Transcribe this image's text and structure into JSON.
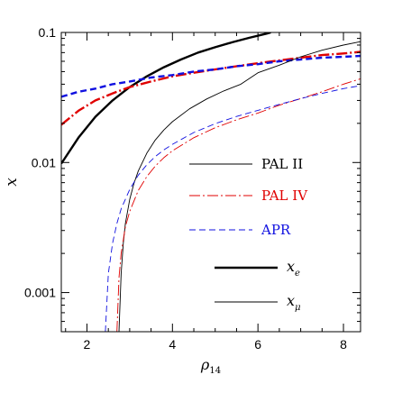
{
  "chart_data": {
    "type": "line",
    "xlabel": "ρ",
    "xlabel_sub": "14",
    "ylabel": "x",
    "y_scale": "log",
    "xlim": [
      1.4,
      8.4
    ],
    "ylim": [
      0.0005,
      0.1
    ],
    "x_ticks": [
      2,
      4,
      6,
      8
    ],
    "x_tick_labels": [
      "2",
      "4",
      "6",
      "8"
    ],
    "y_ticks": [
      0.001,
      0.01,
      0.1
    ],
    "y_tick_labels": [
      "0.001",
      "0.01",
      "0.1"
    ],
    "grid": false,
    "legend": {
      "placement": "right",
      "eos_entries": [
        {
          "label": "PAL II",
          "color": "#000000",
          "style": "solid"
        },
        {
          "label": "PAL IV",
          "color": "#e00000",
          "style": "dash-dot"
        },
        {
          "label": "APR",
          "color": "#1010e0",
          "style": "dashed"
        }
      ],
      "particle_entries": [
        {
          "label": "x",
          "sub": "e",
          "width": "thick"
        },
        {
          "label": "x",
          "sub": "μ",
          "width": "thin"
        }
      ]
    },
    "series": [
      {
        "eos": "PAL II",
        "particle": "e",
        "color": "#000000",
        "style": "solid",
        "width": "thick",
        "x": [
          1.4,
          1.8,
          2.2,
          2.6,
          3.0,
          3.4,
          3.8,
          4.2,
          4.6,
          5.0,
          5.4,
          5.8,
          6.2,
          6.3
        ],
        "y": [
          0.0098,
          0.0155,
          0.0225,
          0.03,
          0.038,
          0.046,
          0.054,
          0.062,
          0.07,
          0.077,
          0.084,
          0.091,
          0.098,
          0.1
        ]
      },
      {
        "eos": "PAL IV",
        "particle": "e",
        "color": "#e00000",
        "style": "dash-dot",
        "width": "thick",
        "x": [
          1.4,
          1.8,
          2.2,
          2.6,
          3.0,
          3.5,
          4.0,
          4.5,
          5.0,
          5.5,
          6.0,
          6.5,
          7.0,
          7.5,
          8.0,
          8.4
        ],
        "y": [
          0.0195,
          0.025,
          0.03,
          0.034,
          0.038,
          0.042,
          0.046,
          0.049,
          0.052,
          0.055,
          0.058,
          0.061,
          0.064,
          0.067,
          0.069,
          0.071
        ]
      },
      {
        "eos": "APR",
        "particle": "e",
        "color": "#1010e0",
        "style": "dashed",
        "width": "thick",
        "x": [
          1.4,
          1.8,
          2.2,
          2.6,
          3.0,
          3.5,
          4.0,
          4.5,
          5.0,
          5.5,
          6.0,
          6.5,
          7.0,
          7.5,
          8.0,
          8.4
        ],
        "y": [
          0.032,
          0.035,
          0.037,
          0.04,
          0.042,
          0.045,
          0.047,
          0.05,
          0.052,
          0.055,
          0.057,
          0.06,
          0.062,
          0.064,
          0.065,
          0.066
        ]
      },
      {
        "eos": "PAL II",
        "particle": "μ",
        "color": "#000000",
        "style": "solid",
        "width": "thin",
        "x": [
          2.75,
          2.8,
          2.85,
          2.9,
          3.0,
          3.1,
          3.2,
          3.4,
          3.6,
          3.8,
          4.0,
          4.4,
          4.8,
          5.2,
          5.6,
          6.0,
          6.5,
          7.0,
          7.5,
          8.0,
          8.4
        ],
        "y": [
          0.0005,
          0.0014,
          0.0024,
          0.0034,
          0.0052,
          0.0069,
          0.0086,
          0.0118,
          0.0149,
          0.0178,
          0.0206,
          0.0259,
          0.0308,
          0.0355,
          0.04,
          0.049,
          0.056,
          0.065,
          0.073,
          0.08,
          0.085
        ]
      },
      {
        "eos": "PAL IV",
        "particle": "μ",
        "color": "#e00000",
        "style": "dash-dot",
        "width": "thin",
        "x": [
          2.7,
          2.75,
          2.8,
          2.9,
          3.0,
          3.2,
          3.4,
          3.6,
          3.8,
          4.0,
          4.5,
          5.0,
          5.5,
          6.0,
          6.5,
          7.0,
          7.5,
          8.0,
          8.4
        ],
        "y": [
          0.0005,
          0.0013,
          0.002,
          0.0032,
          0.0042,
          0.0061,
          0.0078,
          0.0094,
          0.0109,
          0.0123,
          0.0155,
          0.0185,
          0.0213,
          0.024,
          0.0276,
          0.031,
          0.035,
          0.04,
          0.044
        ]
      },
      {
        "eos": "APR",
        "particle": "μ",
        "color": "#1010e0",
        "style": "dashed",
        "width": "thin",
        "x": [
          2.43,
          2.5,
          2.6,
          2.7,
          2.8,
          3.0,
          3.2,
          3.4,
          3.6,
          3.8,
          4.0,
          4.5,
          5.0,
          5.5,
          6.0,
          6.5,
          7.0,
          7.5,
          8.0,
          8.4
        ],
        "y": [
          0.0005,
          0.0014,
          0.0024,
          0.0034,
          0.0044,
          0.0062,
          0.008,
          0.0096,
          0.0111,
          0.0125,
          0.0138,
          0.017,
          0.0199,
          0.0226,
          0.0252,
          0.028,
          0.031,
          0.034,
          0.037,
          0.039
        ]
      }
    ]
  }
}
